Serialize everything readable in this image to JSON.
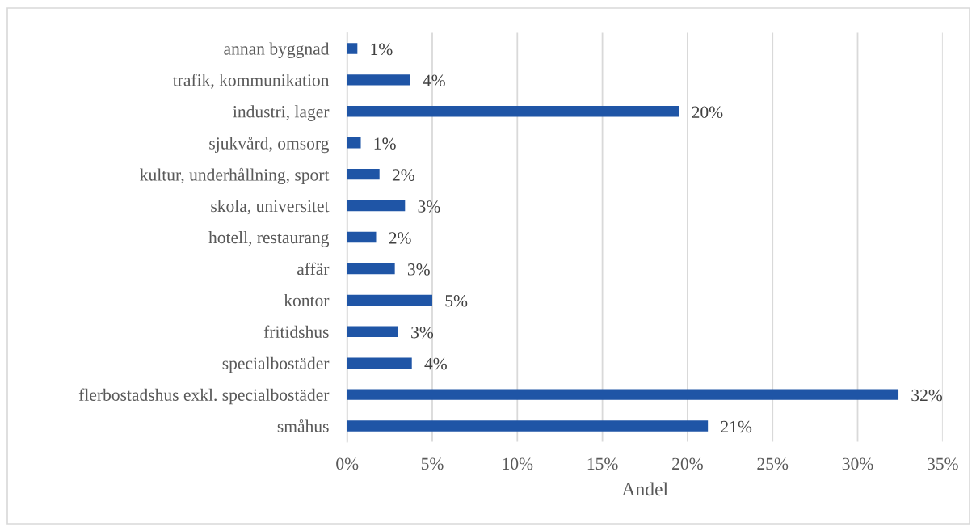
{
  "chart_data": {
    "type": "bar",
    "orientation": "horizontal",
    "categories": [
      "annan byggnad",
      "trafik, kommunikation",
      "industri, lager",
      "sjukvård, omsorg",
      "kultur, underhållning, sport",
      "skola, universitet",
      "hotell, restaurang",
      "affär",
      "kontor",
      "fritidshus",
      "specialbostäder",
      "flerbostadshus exkl. specialbostäder",
      "småhus"
    ],
    "values": [
      0.6,
      3.7,
      19.5,
      0.8,
      1.9,
      3.4,
      1.7,
      2.8,
      5.0,
      3.0,
      3.8,
      32.4,
      21.2
    ],
    "value_labels": [
      "1%",
      "4%",
      "20%",
      "1%",
      "2%",
      "3%",
      "2%",
      "3%",
      "5%",
      "3%",
      "4%",
      "32%",
      "21%"
    ],
    "color": "#1f55a6",
    "xlabel": "Andel",
    "xlim": [
      0,
      35
    ],
    "xticks": [
      {
        "value": 0,
        "label": "0%"
      },
      {
        "value": 5,
        "label": "5%"
      },
      {
        "value": 10,
        "label": "10%"
      },
      {
        "value": 15,
        "label": "15%"
      },
      {
        "value": 20,
        "label": "20%"
      },
      {
        "value": 25,
        "label": "25%"
      },
      {
        "value": 30,
        "label": "30%"
      },
      {
        "value": 35,
        "label": "35%"
      }
    ],
    "grid": "x"
  }
}
